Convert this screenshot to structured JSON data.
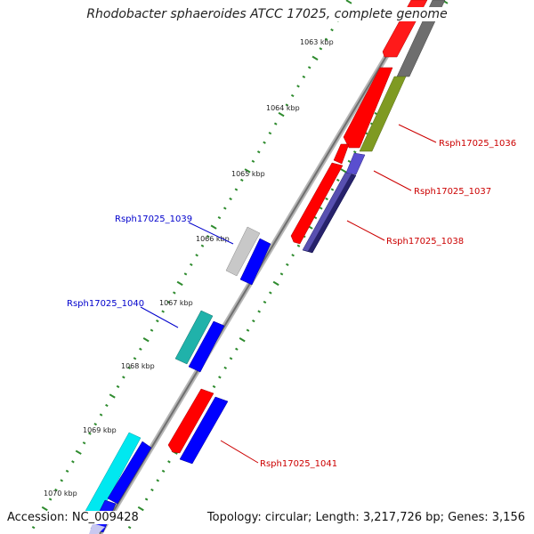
{
  "title": "Rhodobacter sphaeroides ATCC 17025, complete genome",
  "footer": {
    "accession": "Accession: NC_009428",
    "summary": "Topology: circular; Length: 3,217,726 bp; Genes: 3,156"
  },
  "ticks": [
    {
      "label": "1063 kbp"
    },
    {
      "label": "1064 kbp"
    },
    {
      "label": "1065 kbp"
    },
    {
      "label": "1066 kbp"
    },
    {
      "label": "1067 kbp"
    },
    {
      "label": "1068 kbp"
    },
    {
      "label": "1069 kbp"
    },
    {
      "label": "1070 kbp"
    }
  ],
  "gene_labels": [
    {
      "name": "Rsph17025_1036",
      "color": "#cc0000"
    },
    {
      "name": "Rsph17025_1037",
      "color": "#cc0000"
    },
    {
      "name": "Rsph17025_1038",
      "color": "#cc0000"
    },
    {
      "name": "Rsph17025_1039",
      "color": "#0000cc"
    },
    {
      "name": "Rsph17025_1040",
      "color": "#0000cc"
    },
    {
      "name": "Rsph17025_1041",
      "color": "#cc0000"
    }
  ],
  "colors": {
    "backbone": "#888888",
    "tick": "#2e8b2e",
    "red_gene": "#ff0000",
    "blue_gene": "#0000ff",
    "gray_gene": "#6e6e6e",
    "olive_gene": "#6b8e23",
    "navy_gene": "#000080",
    "purple_gene": "#5a4fcf",
    "silver_gene": "#c0c0c0",
    "teal_gene": "#20b2aa",
    "cyan_gene": "#00e5ee"
  }
}
